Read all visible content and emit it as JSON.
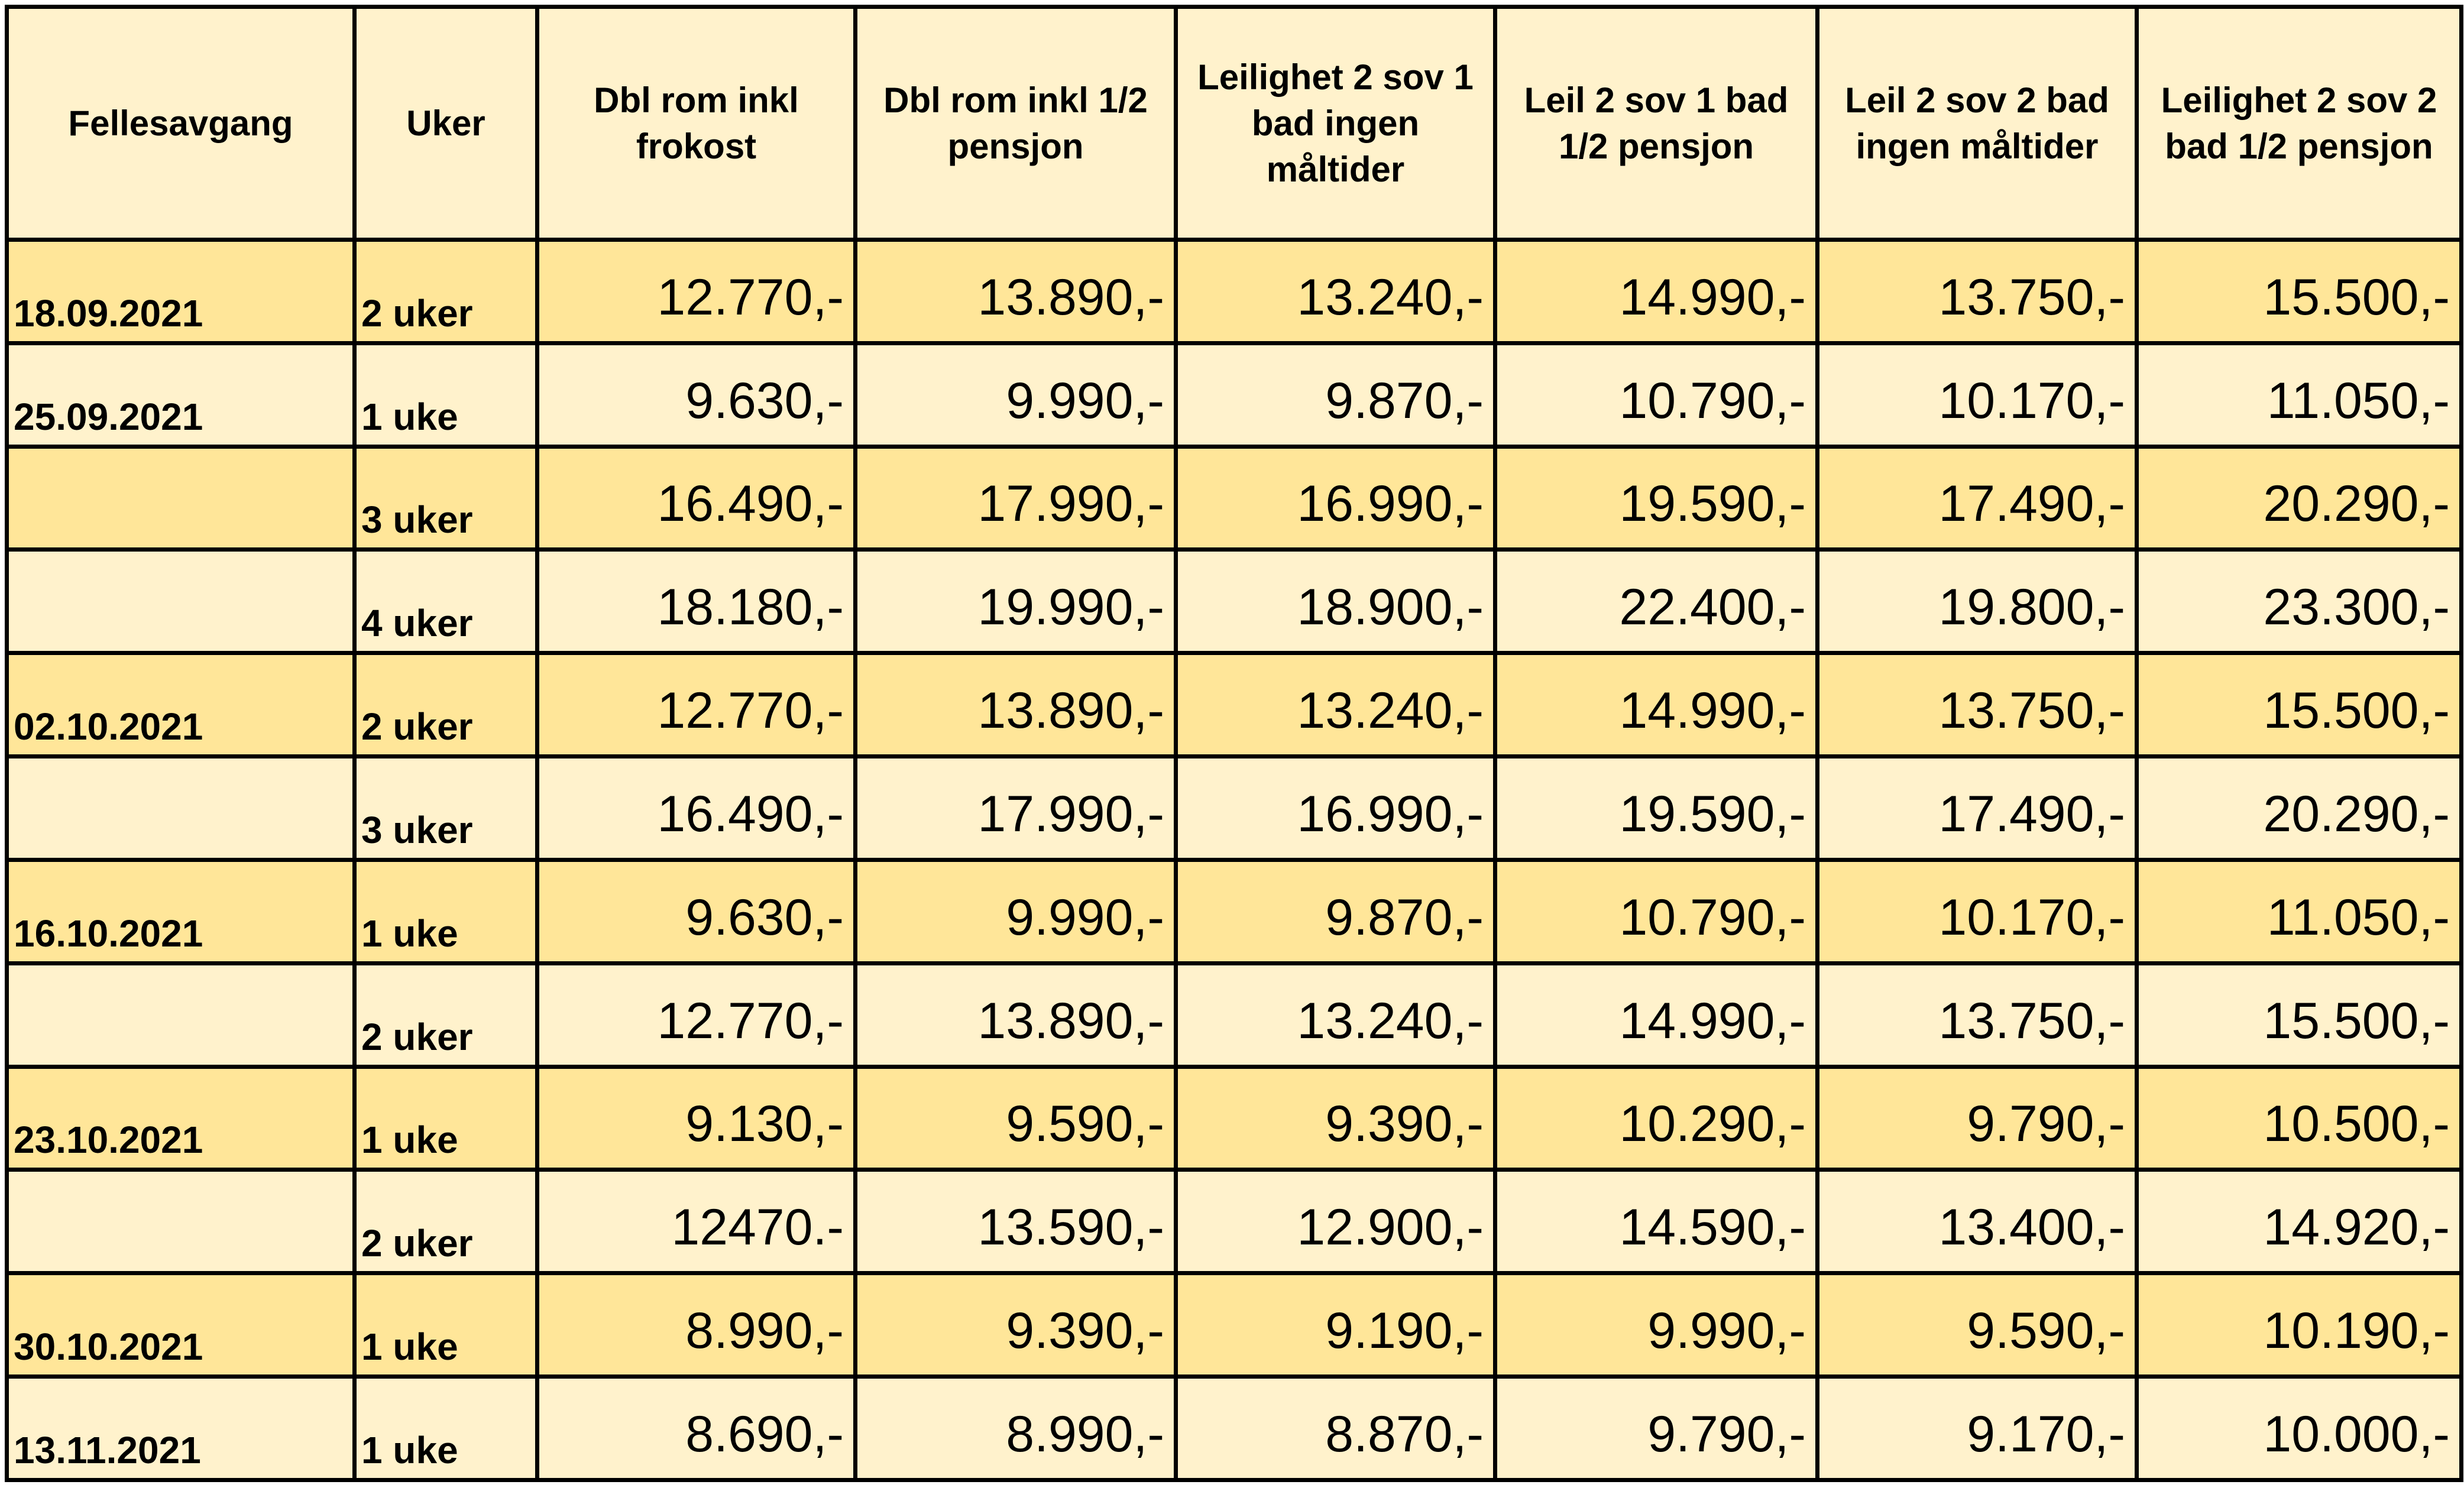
{
  "table": {
    "headers": [
      "Fellesavgang",
      "Uker",
      "Dbl rom inkl frokost",
      "Dbl rom inkl 1/2 pensjon",
      "Leilighet 2 sov 1 bad ingen måltider",
      "Leil 2 sov 1 bad 1/2 pensjon",
      "Leil 2 sov 2 bad ingen måltider",
      "Leilighet 2 sov 2 bad 1/2 pensjon"
    ],
    "rows": [
      {
        "date": "18.09.2021",
        "weeks": "2 uker",
        "prices": [
          "12.770,-",
          "13.890,-",
          "13.240,-",
          "14.990,-",
          "13.750,-",
          "15.500,-"
        ]
      },
      {
        "date": "25.09.2021",
        "weeks": "1 uke",
        "prices": [
          "9.630,-",
          "9.990,-",
          "9.870,-",
          "10.790,-",
          "10.170,-",
          "11.050,-"
        ]
      },
      {
        "date": "",
        "weeks": "3 uker",
        "prices": [
          "16.490,-",
          "17.990,-",
          "16.990,-",
          "19.590,-",
          "17.490,-",
          "20.290,-"
        ]
      },
      {
        "date": "",
        "weeks": "4 uker",
        "prices": [
          "18.180,-",
          "19.990,-",
          "18.900,-",
          "22.400,-",
          "19.800,-",
          "23.300,-"
        ]
      },
      {
        "date": "02.10.2021",
        "weeks": "2 uker",
        "prices": [
          "12.770,-",
          "13.890,-",
          "13.240,-",
          "14.990,-",
          "13.750,-",
          "15.500,-"
        ]
      },
      {
        "date": "",
        "weeks": "3 uker",
        "prices": [
          "16.490,-",
          "17.990,-",
          "16.990,-",
          "19.590,-",
          "17.490,-",
          "20.290,-"
        ]
      },
      {
        "date": "16.10.2021",
        "weeks": "1 uke",
        "prices": [
          "9.630,-",
          "9.990,-",
          "9.870,-",
          "10.790,-",
          "10.170,-",
          "11.050,-"
        ]
      },
      {
        "date": "",
        "weeks": "2 uker",
        "prices": [
          "12.770,-",
          "13.890,-",
          "13.240,-",
          "14.990,-",
          "13.750,-",
          "15.500,-"
        ]
      },
      {
        "date": "23.10.2021",
        "weeks": "1 uke",
        "prices": [
          "9.130,-",
          "9.590,-",
          "9.390,-",
          "10.290,-",
          "9.790,-",
          "10.500,-"
        ]
      },
      {
        "date": "",
        "weeks": "2 uker",
        "prices": [
          "12470.-",
          "13.590,-",
          "12.900,-",
          "14.590,-",
          "13.400,-",
          "14.920,-"
        ]
      },
      {
        "date": "30.10.2021",
        "weeks": "1 uke",
        "prices": [
          "8.990,-",
          "9.390,-",
          "9.190,-",
          "9.990,-",
          "9.590,-",
          "10.190,-"
        ]
      },
      {
        "date": "13.11.2021",
        "weeks": "1 uke",
        "prices": [
          "8.690,-",
          "8.990,-",
          "8.870,-",
          "9.790,-",
          "9.170,-",
          "10.000,-"
        ]
      }
    ]
  },
  "colors": {
    "header_bg": "#fff2cc",
    "row_dark": "#ffe699",
    "row_light": "#fff2cc",
    "border": "#000000"
  }
}
